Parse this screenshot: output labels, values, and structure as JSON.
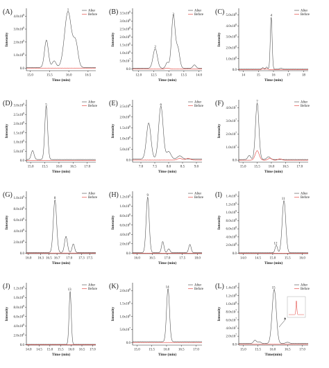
{
  "figure": {
    "legend_labels": [
      "After",
      "Before"
    ],
    "colors": {
      "after": "#444444",
      "before": "#e0302a",
      "axis": "#222222"
    },
    "y_axis_title": "Intensity"
  },
  "chart_data": [
    {
      "type": "line",
      "panel": "(A)",
      "xlabel": "Time (min)",
      "ylabel": "Intensity",
      "xlim": [
        14.9,
        16.7
      ],
      "x_ticks": [
        "15.0",
        "15.5",
        "16.0",
        "16.5"
      ],
      "y_ticks": [
        "0.0",
        "1.0x10⁸",
        "2.0x10⁸",
        "3.0x10⁸",
        "4.0x10⁸"
      ],
      "ylim": [
        -0.2,
        4.6
      ],
      "legend_position": "top-right",
      "peak_labels": [
        {
          "text": "1",
          "x": 15.98,
          "y": 4.3
        }
      ],
      "series": [
        {
          "name": "After",
          "baseline": 0.05,
          "peaks": [
            [
              15.42,
              2.1,
              0.05
            ],
            [
              15.62,
              0.5,
              0.05
            ],
            [
              15.98,
              4.3,
              0.09
            ],
            [
              16.18,
              1.8,
              0.06
            ]
          ]
        },
        {
          "name": "Before",
          "baseline": 0.0,
          "peaks": []
        }
      ]
    },
    {
      "type": "line",
      "panel": "(B)",
      "xlabel": "Time (min)",
      "ylabel": "Intensity",
      "xlim": [
        11.8,
        14.1
      ],
      "x_ticks": [
        "12.0",
        "12.5",
        "13.0",
        "13.5",
        "14.0"
      ],
      "y_ticks": [
        "0.0",
        "5.0x10⁷",
        "1.0x10⁸",
        "1.5x10⁸",
        "2.0x10⁸",
        "2.5x10⁸",
        "3.0x10⁸",
        "3.5x10⁸"
      ],
      "ylim": [
        -0.1,
        3.7
      ],
      "legend_position": "top-right",
      "peak_labels": [
        {
          "text": "2",
          "x": 12.55,
          "y": 1.2
        },
        {
          "text": "3",
          "x": 13.15,
          "y": 3.2
        }
      ],
      "series": [
        {
          "name": "After",
          "baseline": 0.05,
          "peaks": [
            [
              12.55,
              1.2,
              0.07
            ],
            [
              12.95,
              0.35,
              0.05
            ],
            [
              13.15,
              3.2,
              0.06
            ],
            [
              13.3,
              1.2,
              0.06
            ],
            [
              13.85,
              0.2,
              0.05
            ]
          ]
        },
        {
          "name": "Before",
          "baseline": 0.0,
          "peaks": [
            [
              12.95,
              0.05,
              0.08
            ]
          ]
        }
      ]
    },
    {
      "type": "line",
      "panel": "(C)",
      "xlabel": "Time (min)",
      "ylabel": "Intensity",
      "xlim": [
        13.7,
        18.3
      ],
      "x_ticks": [
        "14",
        "15",
        "16",
        "17",
        "18"
      ],
      "y_ticks": [
        "0.0",
        "1.0x10⁸",
        "2.0x10⁸",
        "3.0x10⁸",
        "4.0x10⁸",
        "5.0x10⁸"
      ],
      "ylim": [
        -0.1,
        6.0
      ],
      "legend_position": "top-right",
      "peak_labels": [
        {
          "text": "4",
          "x": 15.85,
          "y": 5.1
        }
      ],
      "series": [
        {
          "name": "After",
          "baseline": 0.05,
          "peaks": [
            [
              15.3,
              0.15,
              0.06
            ],
            [
              15.55,
              0.2,
              0.06
            ],
            [
              15.85,
              5.1,
              0.06
            ],
            [
              16.5,
              0.1,
              0.08
            ]
          ]
        },
        {
          "name": "Before",
          "baseline": 0.0,
          "peaks": [
            [
              15.3,
              0.08,
              0.08
            ],
            [
              15.55,
              0.08,
              0.08
            ]
          ]
        }
      ]
    },
    {
      "type": "line",
      "panel": "(D)",
      "xlabel": "Time (min)",
      "ylabel": "Intensity",
      "xlim": [
        14.85,
        17.3
      ],
      "x_ticks": [
        "15.0",
        "15.5",
        "16.0",
        "16.5",
        "17.0"
      ],
      "y_ticks": [
        "0.0",
        "5.0x10⁷",
        "1.0x10⁸",
        "1.5x10⁸",
        "2.0x10⁸",
        "2.5x10⁸",
        "3.0x10⁸"
      ],
      "ylim": [
        -0.1,
        3.4
      ],
      "legend_position": "top-right",
      "peak_labels": [
        {
          "text": "5",
          "x": 15.55,
          "y": 3.0
        }
      ],
      "series": [
        {
          "name": "After",
          "baseline": 0.05,
          "peaks": [
            [
              15.07,
              0.5,
              0.05
            ],
            [
              15.55,
              3.0,
              0.05
            ]
          ]
        },
        {
          "name": "Before",
          "baseline": 0.0,
          "peaks": []
        }
      ]
    },
    {
      "type": "line",
      "panel": "(E)",
      "xlabel": "Time (min)",
      "ylabel": "Intensity",
      "xlim": [
        6.7,
        9.2
      ],
      "x_ticks": [
        "7.0",
        "7.5",
        "8.0",
        "8.5",
        "9.0"
      ],
      "y_ticks": [
        "0.0",
        "5.0x10⁷",
        "1.0x10⁸",
        "1.5x10⁸",
        "2.0x10⁸",
        "2.5x10⁸"
      ],
      "ylim": [
        -0.1,
        2.85
      ],
      "legend_position": "top-right",
      "peak_labels": [
        {
          "text": "6",
          "x": 7.72,
          "y": 2.5
        }
      ],
      "series": [
        {
          "name": "After",
          "baseline": 0.05,
          "peaks": [
            [
              7.28,
              1.7,
              0.08
            ],
            [
              7.72,
              2.5,
              0.08
            ],
            [
              8.0,
              0.35,
              0.08
            ],
            [
              8.4,
              0.15,
              0.08
            ]
          ]
        },
        {
          "name": "Before",
          "baseline": 0.0,
          "peaks": [
            [
              8.4,
              0.08,
              0.08
            ],
            [
              8.7,
              0.08,
              0.08
            ]
          ]
        }
      ]
    },
    {
      "type": "line",
      "panel": "(F)",
      "xlabel": "Time (min)",
      "ylabel": "Intensity",
      "xlim": [
        14.85,
        17.3
      ],
      "x_ticks": [
        "15.0",
        "15.5",
        "16.0",
        "16.5",
        "17.0"
      ],
      "y_ticks": [
        "0.0",
        "1.0x10⁷",
        "2.0x10⁷",
        "3.0x10⁷",
        "4.0x10⁷"
      ],
      "ylim": [
        -0.15,
        4.5
      ],
      "legend_position": "top-right",
      "peak_labels": [
        {
          "text": "7",
          "x": 15.5,
          "y": 4.2
        }
      ],
      "series": [
        {
          "name": "After",
          "baseline": 0.05,
          "peaks": [
            [
              15.22,
              0.3,
              0.05
            ],
            [
              15.5,
              4.2,
              0.06
            ],
            [
              15.9,
              0.2,
              0.06
            ]
          ]
        },
        {
          "name": "Before",
          "baseline": 0.0,
          "peaks": [
            [
              15.5,
              0.7,
              0.07
            ],
            [
              15.95,
              0.15,
              0.06
            ],
            [
              16.3,
              0.1,
              0.06
            ]
          ]
        }
      ]
    },
    {
      "type": "line",
      "panel": "(G)",
      "xlabel": "Time (min)",
      "ylabel": "Intensity",
      "xlim": [
        15.95,
        17.65
      ],
      "x_ticks": [
        "16.0",
        "16.3",
        "16.5",
        "16.7",
        "17.0",
        "17.3",
        "17.5"
      ],
      "y_ticks": [
        "0.0",
        "2.0x10⁸",
        "4.0x10⁸",
        "6.0x10⁸",
        "8.0x10⁸",
        "1.0x10⁹"
      ],
      "ylim": [
        -0.1,
        10.8
      ],
      "legend_position": "top-right",
      "peak_labels": [
        {
          "text": "8",
          "x": 16.65,
          "y": 9.2
        }
      ],
      "series": [
        {
          "name": "After",
          "baseline": 0.1,
          "peaks": [
            [
              16.65,
              9.2,
              0.04
            ],
            [
              16.92,
              2.8,
              0.035
            ],
            [
              17.1,
              1.5,
              0.03
            ]
          ]
        },
        {
          "name": "Before",
          "baseline": 0.0,
          "peaks": []
        }
      ]
    },
    {
      "type": "line",
      "panel": "(H)",
      "xlabel": "Time (min)",
      "ylabel": "Intensity",
      "xlim": [
        15.85,
        18.15
      ],
      "x_ticks": [
        "16.0",
        "16.5",
        "17.0",
        "17.5",
        "18.0"
      ],
      "y_ticks": [
        "0.0",
        "2.0x10⁸",
        "4.0x10⁸",
        "6.0x10⁸",
        "8.0x10⁸",
        "1.0x10⁹",
        "1.2x10⁹"
      ],
      "ylim": [
        -0.1,
        12.8
      ],
      "legend_position": "top-right",
      "peak_labels": [
        {
          "text": "9",
          "x": 16.35,
          "y": 11.5
        }
      ],
      "series": [
        {
          "name": "After",
          "baseline": 0.1,
          "peaks": [
            [
              16.35,
              11.5,
              0.05
            ],
            [
              16.85,
              2.3,
              0.04
            ],
            [
              17.05,
              0.8,
              0.04
            ],
            [
              17.75,
              1.7,
              0.04
            ]
          ]
        },
        {
          "name": "Before",
          "baseline": 0.0,
          "peaks": []
        }
      ]
    },
    {
      "type": "line",
      "panel": "(I)",
      "xlabel": "Time (min)",
      "ylabel": "Intensity",
      "xlim": [
        13.85,
        16.2
      ],
      "x_ticks": [
        "14.0",
        "14.5",
        "15.0",
        "15.5",
        "16.0"
      ],
      "y_ticks": [
        "0.0",
        "2.0x10⁸",
        "4.0x10⁸",
        "6.0x10⁸",
        "8.0x10⁸",
        "1.0x10⁹",
        "1.2x10⁹",
        "1.4x10⁹"
      ],
      "ylim": [
        -0.1,
        14.8
      ],
      "legend_position": "top-right",
      "peak_labels": [
        {
          "text": "12",
          "x": 15.12,
          "y": 1.8
        },
        {
          "text": "11",
          "x": 15.38,
          "y": 12.5
        }
      ],
      "series": [
        {
          "name": "After",
          "baseline": 0.1,
          "peaks": [
            [
              15.12,
              1.8,
              0.04
            ],
            [
              15.38,
              12.5,
              0.06
            ]
          ]
        },
        {
          "name": "Before",
          "baseline": 0.0,
          "peaks": []
        }
      ]
    },
    {
      "type": "line",
      "panel": "(J)",
      "xlabel": "Time (min)",
      "ylabel": "Intensity",
      "xlim": [
        13.9,
        17.15
      ],
      "x_ticks": [
        "14.0",
        "14.5",
        "15.0",
        "15.5",
        "16.0",
        "16.5",
        "17.0"
      ],
      "y_ticks": [
        "0.0",
        "2.0x10⁸",
        "4.0x10⁸",
        "6.0x10⁸",
        "8.0x10⁸",
        "1.0x10⁹",
        "1.2x10⁹"
      ],
      "ylim": [
        -0.1,
        12.6
      ],
      "legend_position": "top-right",
      "peak_labels": [
        {
          "text": "13",
          "x": 15.95,
          "y": 10.8
        }
      ],
      "series": [
        {
          "name": "After",
          "baseline": 0.05,
          "peaks": [
            [
              15.95,
              10.8,
              0.05
            ]
          ]
        },
        {
          "name": "Before",
          "baseline": 0.0,
          "peaks": []
        }
      ]
    },
    {
      "type": "line",
      "panel": "(K)",
      "xlabel": "Time (min)",
      "ylabel": "Intensity",
      "xlim": [
        14.85,
        17.2
      ],
      "x_ticks": [
        "15.0",
        "15.5",
        "16.0",
        "16.5",
        "17.0"
      ],
      "y_ticks": [
        "0.0",
        "5.0x10⁷",
        "1.0x10⁸",
        "1.5x10⁸",
        "2.0x10⁸"
      ],
      "ylim": [
        -0.1,
        2.25
      ],
      "legend_position": "top-right",
      "peak_labels": [
        {
          "text": "14",
          "x": 16.05,
          "y": 2.0
        }
      ],
      "series": [
        {
          "name": "After",
          "baseline": 0.03,
          "peaks": [
            [
              16.05,
              2.0,
              0.05
            ]
          ]
        },
        {
          "name": "Before",
          "baseline": 0.0,
          "peaks": []
        }
      ]
    },
    {
      "type": "line",
      "panel": "(L)",
      "xlabel": "Time(min)",
      "ylabel": "Intensity",
      "xlim": [
        14.85,
        17.2
      ],
      "x_ticks": [
        "15.0",
        "15.5",
        "16.0",
        "16.5",
        "17.0"
      ],
      "y_ticks": [
        "0.0",
        "2.0x10⁷",
        "4.0x10⁷",
        "6.0x10⁷",
        "8.0x10⁷",
        "1.0x10⁸",
        "1.2x10⁸",
        "1.4x10⁸"
      ],
      "ylim": [
        -0.2,
        15.0
      ],
      "legend_position": "top-right",
      "peak_labels": [
        {
          "text": "15",
          "x": 16.05,
          "y": 13.2
        }
      ],
      "series": [
        {
          "name": "After",
          "baseline": 0.2,
          "peaks": [
            [
              15.4,
              0.8,
              0.05
            ],
            [
              15.55,
              0.4,
              0.05
            ],
            [
              16.05,
              13.2,
              0.07
            ],
            [
              16.5,
              0.3,
              0.06
            ]
          ]
        },
        {
          "name": "Before",
          "baseline": 0.0,
          "peaks": []
        }
      ],
      "inset": {
        "description": "zoom of Before trace",
        "peak_x": 0.5,
        "arrow": true
      }
    }
  ]
}
